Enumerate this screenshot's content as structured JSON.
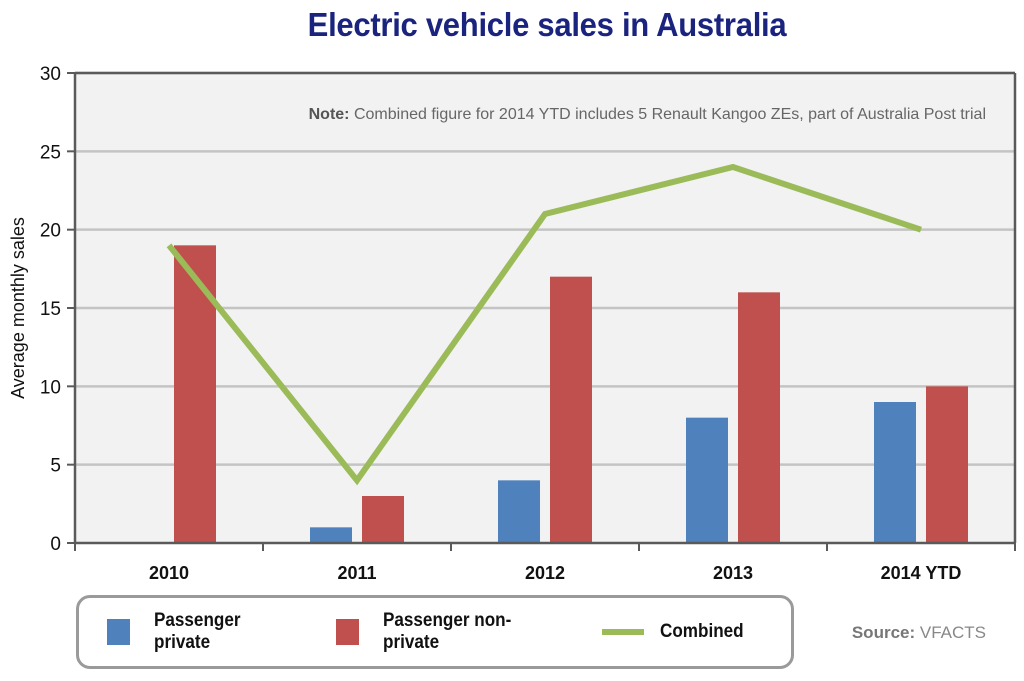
{
  "chart_data": {
    "type": "bar",
    "title": "Electric vehicle sales in Australia",
    "ylabel": "Average monthly sales",
    "xlabel": "",
    "ylim": [
      0,
      30
    ],
    "yticks": [
      0,
      5,
      10,
      15,
      20,
      25,
      30
    ],
    "categories": [
      "2010",
      "2011",
      "2012",
      "2013",
      "2014 YTD"
    ],
    "series": [
      {
        "name": "Passenger private",
        "kind": "bar",
        "color": "#4f81bd",
        "values": [
          0,
          1,
          4,
          8,
          9
        ]
      },
      {
        "name": "Passenger non-private",
        "kind": "bar",
        "color": "#c0504d",
        "values": [
          19,
          3,
          17,
          16,
          10
        ]
      },
      {
        "name": "Combined",
        "kind": "line",
        "color": "#9bbb59",
        "values": [
          19,
          4,
          21,
          24,
          20
        ]
      }
    ],
    "grid": true,
    "legend_position": "bottom-left",
    "note_label": "Note:",
    "note_text": "Combined figure for 2014 YTD includes 5 Renault Kangoo ZEs, part of Australia Post trial",
    "source_label": "Source:",
    "source_text": "VFACTS"
  }
}
